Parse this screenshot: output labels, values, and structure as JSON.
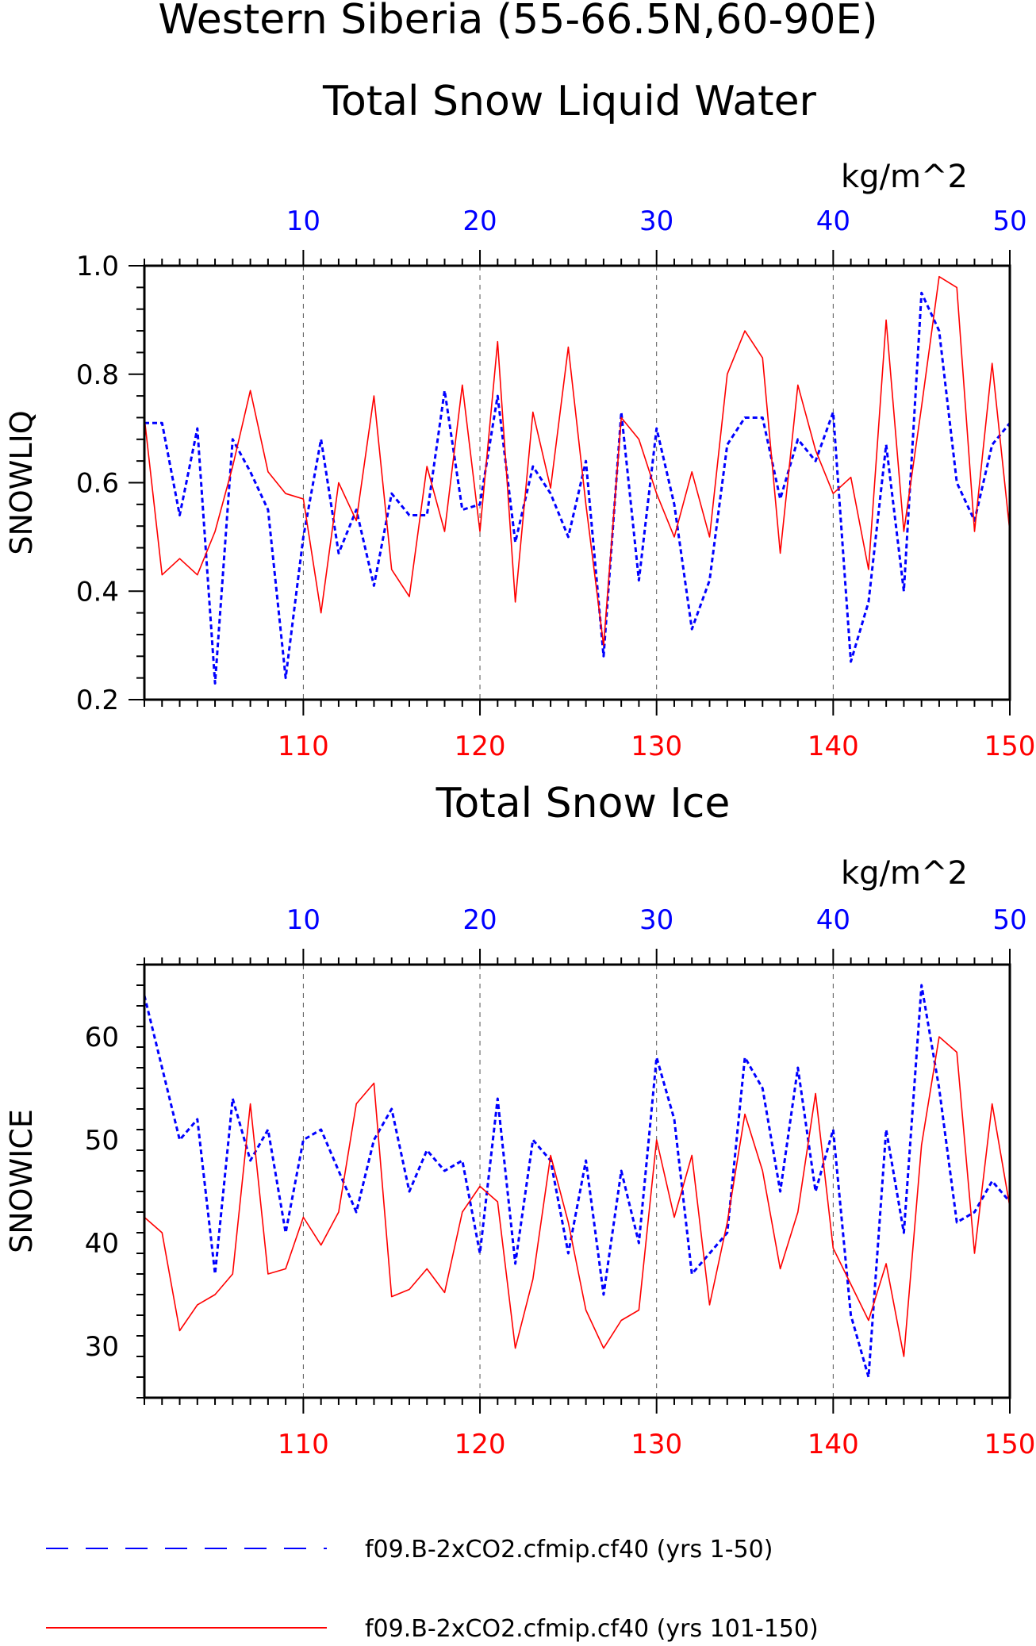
{
  "figure": {
    "title_line1": "Western Siberia (55-66.5N,60-90E)",
    "title_line2": "Total Snow Liquid Water"
  },
  "legend": {
    "entries": [
      {
        "label": "f09.B-2xCO2.cfmip.cf40 (yrs 1-50)",
        "color": "#0000ff",
        "style": "dashed"
      },
      {
        "label": "f09.B-2xCO2.cfmip.cf40 (yrs 101-150)",
        "color": "#ff0000",
        "style": "solid"
      }
    ]
  },
  "chart_data": [
    {
      "type": "line",
      "title": "Total Snow Liquid Water",
      "ylabel": "SNOWLIQ",
      "units": "kg/m^2",
      "ylim": [
        0.2,
        1.0
      ],
      "yticks": [
        0.2,
        0.4,
        0.6,
        0.8,
        1.0
      ],
      "ytick_labels": [
        "0.2",
        "0.4",
        "0.6",
        "0.8",
        "1.0"
      ],
      "x_bottom": {
        "range": [
          101,
          150
        ],
        "ticks": [
          110,
          120,
          130,
          140,
          150
        ],
        "color": "#ff0000"
      },
      "x_top": {
        "range": [
          1,
          50
        ],
        "ticks": [
          10,
          20,
          30,
          40,
          50
        ],
        "color": "#0000ff"
      },
      "grid": "vertical dashed at major ticks",
      "series": [
        {
          "name": "f09.B-2xCO2.cfmip.cf40 (yrs 1-50)",
          "color": "#0000ff",
          "style": "dashed",
          "axis": "top",
          "x": [
            1,
            2,
            3,
            4,
            5,
            6,
            7,
            8,
            9,
            10,
            11,
            12,
            13,
            14,
            15,
            16,
            17,
            18,
            19,
            20,
            21,
            22,
            23,
            24,
            25,
            26,
            27,
            28,
            29,
            30,
            31,
            32,
            33,
            34,
            35,
            36,
            37,
            38,
            39,
            40,
            41,
            42,
            43,
            44,
            45,
            46,
            47,
            48,
            49,
            50
          ],
          "y": [
            0.71,
            0.71,
            0.54,
            0.7,
            0.23,
            0.68,
            0.62,
            0.55,
            0.24,
            0.5,
            0.68,
            0.47,
            0.55,
            0.41,
            0.58,
            0.54,
            0.54,
            0.77,
            0.55,
            0.56,
            0.76,
            0.49,
            0.63,
            0.58,
            0.5,
            0.64,
            0.28,
            0.73,
            0.42,
            0.7,
            0.56,
            0.33,
            0.42,
            0.67,
            0.72,
            0.72,
            0.57,
            0.68,
            0.64,
            0.73,
            0.27,
            0.38,
            0.67,
            0.4,
            0.95,
            0.88,
            0.6,
            0.53,
            0.67,
            0.71
          ]
        },
        {
          "name": "f09.B-2xCO2.cfmip.cf40 (yrs 101-150)",
          "color": "#ff0000",
          "style": "solid",
          "axis": "bottom",
          "x": [
            101,
            102,
            103,
            104,
            105,
            106,
            107,
            108,
            109,
            110,
            111,
            112,
            113,
            114,
            115,
            116,
            117,
            118,
            119,
            120,
            121,
            122,
            123,
            124,
            125,
            126,
            127,
            128,
            129,
            130,
            131,
            132,
            133,
            134,
            135,
            136,
            137,
            138,
            139,
            140,
            141,
            142,
            143,
            144,
            145,
            146,
            147,
            148,
            149,
            150
          ],
          "y": [
            0.72,
            0.43,
            0.46,
            0.43,
            0.51,
            0.63,
            0.77,
            0.62,
            0.58,
            0.57,
            0.36,
            0.6,
            0.53,
            0.76,
            0.44,
            0.39,
            0.63,
            0.51,
            0.78,
            0.51,
            0.86,
            0.38,
            0.73,
            0.59,
            0.85,
            0.56,
            0.3,
            0.72,
            0.68,
            0.58,
            0.5,
            0.62,
            0.5,
            0.8,
            0.88,
            0.83,
            0.47,
            0.78,
            0.66,
            0.58,
            0.61,
            0.44,
            0.9,
            0.51,
            0.74,
            0.98,
            0.96,
            0.51,
            0.82,
            0.51
          ]
        }
      ]
    },
    {
      "type": "line",
      "title": "Total Snow Ice",
      "ylabel": "SNOWICE",
      "units": "kg/m^2",
      "ylim": [
        25,
        67
      ],
      "yticks": [
        30,
        40,
        50,
        60
      ],
      "ytick_labels": [
        "30",
        "40",
        "50",
        "60"
      ],
      "x_bottom": {
        "range": [
          101,
          150
        ],
        "ticks": [
          110,
          120,
          130,
          140,
          150
        ],
        "color": "#ff0000"
      },
      "x_top": {
        "range": [
          1,
          50
        ],
        "ticks": [
          10,
          20,
          30,
          40,
          50
        ],
        "color": "#0000ff"
      },
      "grid": "vertical dashed at major ticks",
      "series": [
        {
          "name": "f09.B-2xCO2.cfmip.cf40 (yrs 1-50)",
          "color": "#0000ff",
          "style": "dashed",
          "axis": "top",
          "x": [
            1,
            2,
            3,
            4,
            5,
            6,
            7,
            8,
            9,
            10,
            11,
            12,
            13,
            14,
            15,
            16,
            17,
            18,
            19,
            20,
            21,
            22,
            23,
            24,
            25,
            26,
            27,
            28,
            29,
            30,
            31,
            32,
            33,
            34,
            35,
            36,
            37,
            38,
            39,
            40,
            41,
            42,
            43,
            44,
            45,
            46,
            47,
            48,
            49,
            50
          ],
          "y": [
            64,
            57,
            50,
            52,
            37,
            54,
            48,
            51,
            41,
            50,
            51,
            47,
            43,
            50,
            53,
            45,
            49,
            47,
            48,
            39,
            54,
            38,
            50,
            48,
            39,
            48,
            35,
            47,
            40,
            58,
            52,
            37,
            39,
            41,
            58,
            55,
            45,
            57,
            45,
            51,
            33,
            27,
            51,
            41,
            65,
            55,
            42,
            43,
            46,
            44
          ]
        },
        {
          "name": "f09.B-2xCO2.cfmip.cf40 (yrs 101-150)",
          "color": "#ff0000",
          "style": "solid",
          "axis": "bottom",
          "x": [
            101,
            102,
            103,
            104,
            105,
            106,
            107,
            108,
            109,
            110,
            111,
            112,
            113,
            114,
            115,
            116,
            117,
            118,
            119,
            120,
            121,
            122,
            123,
            124,
            125,
            126,
            127,
            128,
            129,
            130,
            131,
            132,
            133,
            134,
            135,
            136,
            137,
            138,
            139,
            140,
            141,
            142,
            143,
            144,
            145,
            146,
            147,
            148,
            149,
            150
          ],
          "y": [
            42.5,
            41,
            31.5,
            34,
            35,
            37,
            53.5,
            37,
            37.5,
            42.5,
            39.8,
            43,
            53.5,
            55.5,
            34.8,
            35.5,
            37.5,
            35.2,
            43,
            45.5,
            44,
            29.8,
            36.5,
            48.5,
            42,
            33.5,
            29.8,
            32.5,
            33.5,
            50,
            42.5,
            48.5,
            34,
            42,
            52.5,
            47,
            37.5,
            43,
            54.5,
            39.5,
            36,
            32.5,
            38,
            29,
            49.5,
            60,
            58.5,
            39,
            53.5,
            43.5
          ]
        }
      ]
    }
  ]
}
